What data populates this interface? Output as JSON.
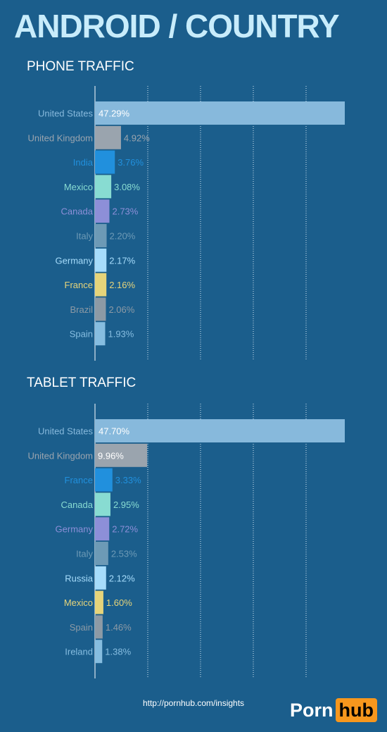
{
  "title": "ANDROID / COUNTRY",
  "footer": {
    "url": "http://pornhub.com/insights"
  },
  "logo": {
    "part1": "Porn",
    "part2": "hub"
  },
  "chart_data": [
    {
      "type": "bar",
      "orientation": "horizontal",
      "title": "PHONE TRAFFIC",
      "xlim": [
        0,
        47.29
      ],
      "grid": true,
      "categories": [
        "United States",
        "United Kingdom",
        "India",
        "Mexico",
        "Canada",
        "Italy",
        "Germany",
        "France",
        "Brazil",
        "Spain"
      ],
      "values": [
        47.29,
        4.92,
        3.76,
        3.08,
        2.73,
        2.2,
        2.17,
        2.16,
        2.06,
        1.93
      ],
      "labels": [
        "47.29%",
        "4.92%",
        "3.76%",
        "3.08%",
        "2.73%",
        "2.20%",
        "2.17%",
        "2.16%",
        "2.06%",
        "1.93%"
      ],
      "colors": [
        "#87b9dc",
        "#9aa4ae",
        "#2190dd",
        "#88dcd2",
        "#8d8fd8",
        "#6d9ab6",
        "#a6dcfb",
        "#e6d47a",
        "#8d9aa5",
        "#86bde0"
      ]
    },
    {
      "type": "bar",
      "orientation": "horizontal",
      "title": "TABLET TRAFFIC",
      "xlim": [
        0,
        47.7
      ],
      "grid": true,
      "categories": [
        "United States",
        "United Kingdom",
        "France",
        "Canada",
        "Germany",
        "Italy",
        "Russia",
        "Mexico",
        "Spain",
        "Ireland"
      ],
      "values": [
        47.7,
        9.96,
        3.33,
        2.95,
        2.72,
        2.53,
        2.12,
        1.6,
        1.46,
        1.38
      ],
      "labels": [
        "47.70%",
        "9.96%",
        "3.33%",
        "2.95%",
        "2.72%",
        "2.53%",
        "2.12%",
        "1.60%",
        "1.46%",
        "1.38%"
      ],
      "colors": [
        "#87b9dc",
        "#9aa4ae",
        "#2190dd",
        "#88dcd2",
        "#8d8fd8",
        "#6d9ab6",
        "#a6dcfb",
        "#e6d47a",
        "#8d9aa5",
        "#86bde0"
      ]
    }
  ]
}
